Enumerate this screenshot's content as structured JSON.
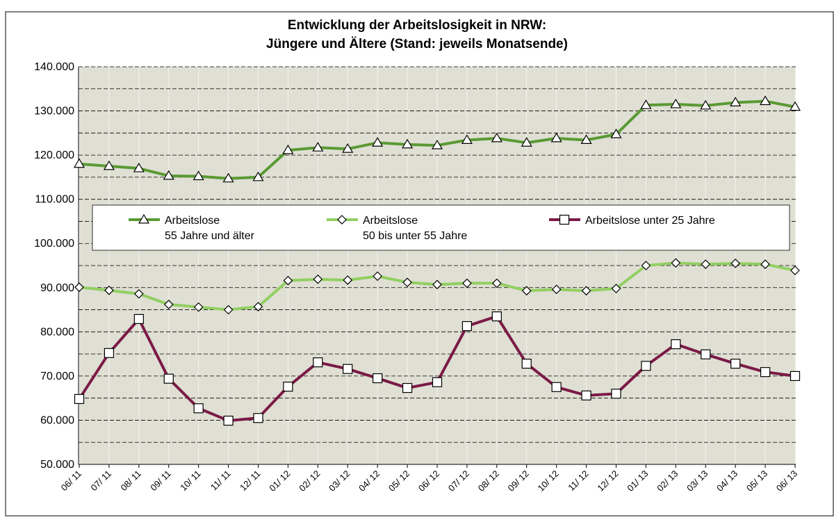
{
  "chart_data": {
    "type": "line",
    "title": "Entwicklung der Arbeitslosigkeit in NRW:",
    "subtitle": "Jüngere und Ältere  (Stand: jeweils Monatsende)",
    "categories": [
      "06/ 11",
      "07/ 11",
      "08/ 11",
      "09/ 11",
      "10/ 11",
      "11/ 11",
      "12/ 11",
      "01/ 12",
      "02/ 12",
      "03/ 12",
      "04/ 12",
      "05/ 12",
      "06/ 12",
      "07/ 12",
      "08/ 12",
      "09/ 12",
      "10/ 12",
      "11/ 12",
      "12/ 12",
      "01/ 13",
      "02/ 13",
      "03/ 13",
      "04/ 13",
      "05/ 13",
      "06/ 13"
    ],
    "series": [
      {
        "name": "Arbeitslose\n55 Jahre und älter",
        "color": "#5a9a34",
        "marker": "triangle",
        "values": [
          118000,
          117500,
          117000,
          115300,
          115200,
          114700,
          115000,
          121100,
          121700,
          121400,
          122800,
          122400,
          122200,
          123400,
          123800,
          122800,
          123800,
          123400,
          124700,
          131300,
          131500,
          131200,
          131900,
          132200,
          130900
        ]
      },
      {
        "name": "Arbeitslose\n50 bis unter 55 Jahre",
        "color": "#92cf62",
        "marker": "diamond",
        "values": [
          90100,
          89400,
          88600,
          86200,
          85600,
          85000,
          85700,
          91600,
          91900,
          91700,
          92600,
          91200,
          90700,
          91000,
          91000,
          89300,
          89600,
          89300,
          89800,
          95000,
          95600,
          95300,
          95500,
          95300,
          93900
        ]
      },
      {
        "name": "Arbeitslose unter 25 Jahre",
        "color": "#7b1a46",
        "marker": "square",
        "values": [
          64800,
          75200,
          82900,
          69400,
          62700,
          59900,
          60500,
          67600,
          73100,
          71600,
          69500,
          67300,
          68600,
          81300,
          83500,
          72800,
          67500,
          65600,
          66000,
          72300,
          77200,
          74900,
          72800,
          70900,
          70000
        ]
      }
    ],
    "ylim": [
      50000,
      140000
    ],
    "yticks": [
      {
        "value": 50000,
        "label": "50.000"
      },
      {
        "value": 60000,
        "label": "60.000"
      },
      {
        "value": 70000,
        "label": "70.000"
      },
      {
        "value": 80000,
        "label": "80.000"
      },
      {
        "value": 90000,
        "label": "90.000"
      },
      {
        "value": 100000,
        "label": "100.000"
      },
      {
        "value": 110000,
        "label": "110.000"
      },
      {
        "value": 120000,
        "label": "120.000"
      },
      {
        "value": 130000,
        "label": "130.000"
      },
      {
        "value": 140000,
        "label": "140.000"
      }
    ],
    "grid": true
  }
}
